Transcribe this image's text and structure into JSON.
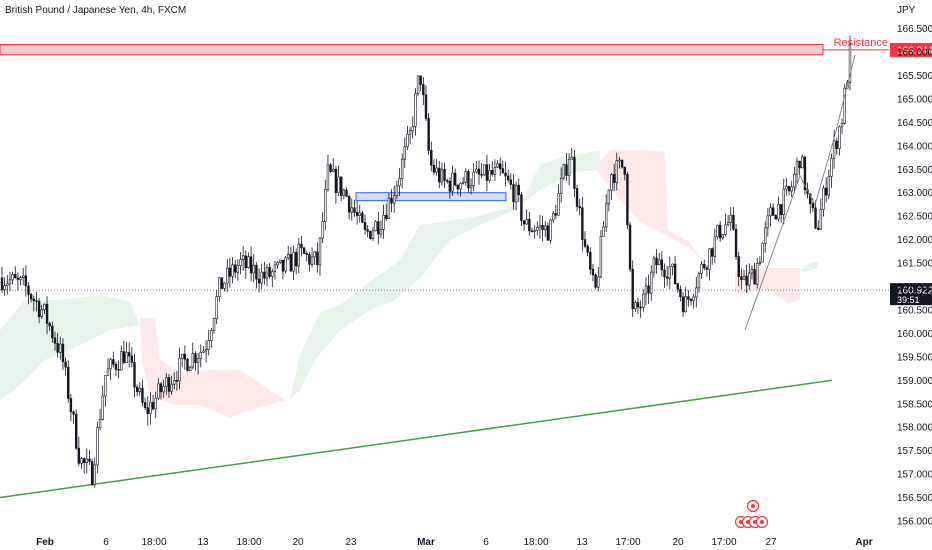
{
  "title": "British Pound / Japanese Yen, 4h, FXCM",
  "currency": "JPY",
  "chart_data": {
    "type": "candlestick",
    "title": "British Pound / Japanese Yen, 4h, FXCM",
    "y_unit": "JPY",
    "ylim": [
      155.85,
      166.95
    ],
    "y_ticks": [
      "166.500",
      "166.000",
      "165.500",
      "165.000",
      "164.500",
      "164.000",
      "163.500",
      "163.000",
      "162.500",
      "162.000",
      "161.500",
      "161.000",
      "160.500",
      "160.000",
      "159.500",
      "159.000",
      "158.500",
      "158.000",
      "157.500",
      "157.000",
      "156.500",
      "156.000"
    ],
    "x_ticks": [
      {
        "label": "Feb",
        "bold": true
      },
      {
        "label": "6",
        "bold": false
      },
      {
        "label": "18:00",
        "bold": false
      },
      {
        "label": "13",
        "bold": false
      },
      {
        "label": "18:00",
        "bold": false
      },
      {
        "label": "20",
        "bold": false
      },
      {
        "label": "23",
        "bold": false
      },
      {
        "label": "Mar",
        "bold": true
      },
      {
        "label": "6",
        "bold": false
      },
      {
        "label": "18:00",
        "bold": false
      },
      {
        "label": "13",
        "bold": false
      },
      {
        "label": "17:00",
        "bold": false
      },
      {
        "label": "20",
        "bold": false
      },
      {
        "label": "17:00",
        "bold": false
      },
      {
        "label": "27",
        "bold": false
      },
      {
        "label": "Apr",
        "bold": true
      }
    ],
    "price_marker": {
      "value": "160.922",
      "countdown": "39:51",
      "price": 160.922
    },
    "resistance": {
      "label": "Resistance",
      "value": "166.044",
      "low": 165.94,
      "high": 166.16
    },
    "support_box": {
      "low": 162.83,
      "high": 163.0
    },
    "trendline": {
      "start_price": 156.5,
      "end_price": 159.0
    },
    "colors": {
      "up": "#131722",
      "down": "#131722",
      "resistance": "#f23645",
      "resistance_fill": "#f8c9cd",
      "support_box": "#2962ff",
      "support_fill": "#cfdcfb",
      "trendline": "#43a047",
      "cloud_green": "#e6f3e9",
      "cloud_red": "#fde9e7"
    },
    "legend": "none",
    "grid": false
  }
}
